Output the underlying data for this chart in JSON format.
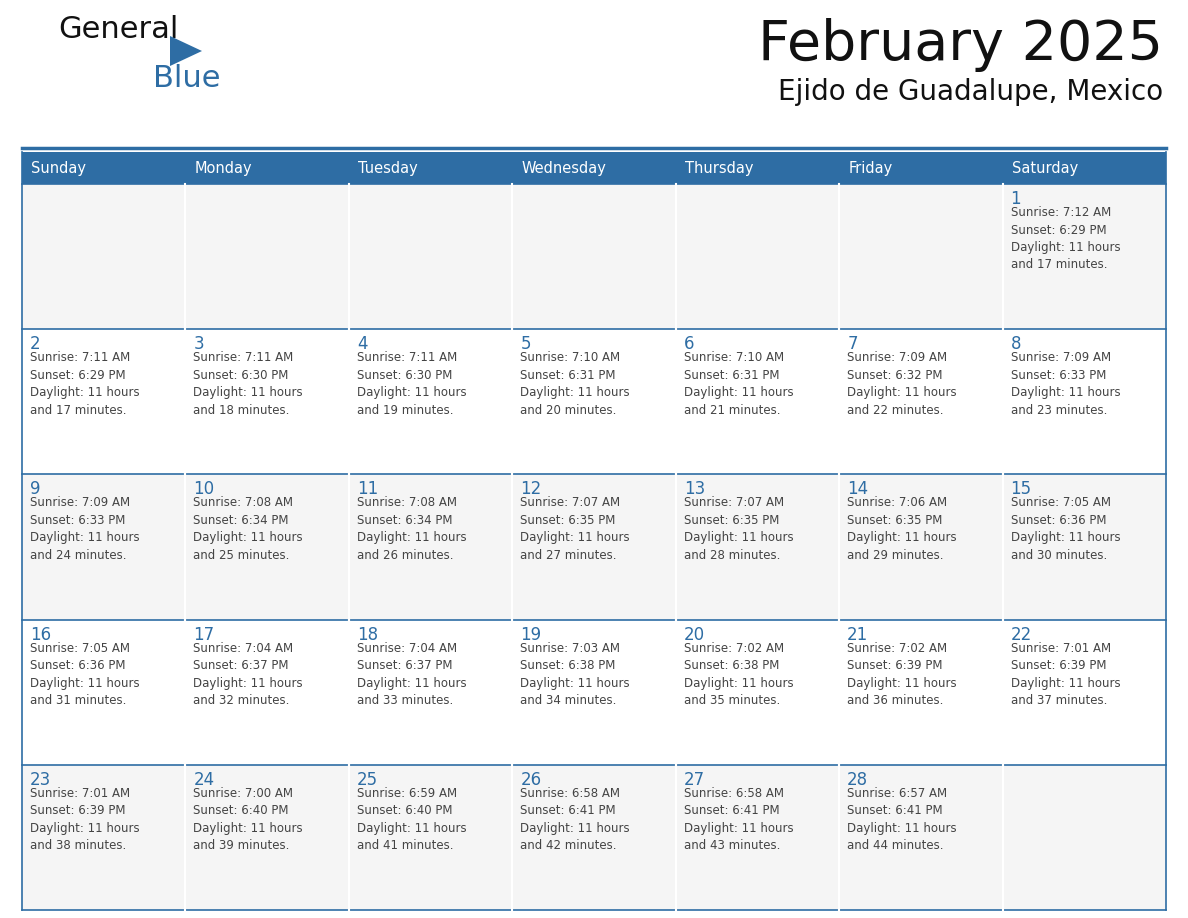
{
  "title": "February 2025",
  "subtitle": "Ejido de Guadalupe, Mexico",
  "header_bg": "#2E6DA4",
  "header_text_color": "#FFFFFF",
  "cell_bg": "#FFFFFF",
  "cell_bg_alt": "#F5F5F5",
  "day_number_color": "#2E6DA4",
  "cell_text_color": "#444444",
  "grid_line_color": "#2E6DA4",
  "days_of_week": [
    "Sunday",
    "Monday",
    "Tuesday",
    "Wednesday",
    "Thursday",
    "Friday",
    "Saturday"
  ],
  "weeks": [
    [
      {
        "day": "",
        "info": ""
      },
      {
        "day": "",
        "info": ""
      },
      {
        "day": "",
        "info": ""
      },
      {
        "day": "",
        "info": ""
      },
      {
        "day": "",
        "info": ""
      },
      {
        "day": "",
        "info": ""
      },
      {
        "day": "1",
        "info": "Sunrise: 7:12 AM\nSunset: 6:29 PM\nDaylight: 11 hours\nand 17 minutes."
      }
    ],
    [
      {
        "day": "2",
        "info": "Sunrise: 7:11 AM\nSunset: 6:29 PM\nDaylight: 11 hours\nand 17 minutes."
      },
      {
        "day": "3",
        "info": "Sunrise: 7:11 AM\nSunset: 6:30 PM\nDaylight: 11 hours\nand 18 minutes."
      },
      {
        "day": "4",
        "info": "Sunrise: 7:11 AM\nSunset: 6:30 PM\nDaylight: 11 hours\nand 19 minutes."
      },
      {
        "day": "5",
        "info": "Sunrise: 7:10 AM\nSunset: 6:31 PM\nDaylight: 11 hours\nand 20 minutes."
      },
      {
        "day": "6",
        "info": "Sunrise: 7:10 AM\nSunset: 6:31 PM\nDaylight: 11 hours\nand 21 minutes."
      },
      {
        "day": "7",
        "info": "Sunrise: 7:09 AM\nSunset: 6:32 PM\nDaylight: 11 hours\nand 22 minutes."
      },
      {
        "day": "8",
        "info": "Sunrise: 7:09 AM\nSunset: 6:33 PM\nDaylight: 11 hours\nand 23 minutes."
      }
    ],
    [
      {
        "day": "9",
        "info": "Sunrise: 7:09 AM\nSunset: 6:33 PM\nDaylight: 11 hours\nand 24 minutes."
      },
      {
        "day": "10",
        "info": "Sunrise: 7:08 AM\nSunset: 6:34 PM\nDaylight: 11 hours\nand 25 minutes."
      },
      {
        "day": "11",
        "info": "Sunrise: 7:08 AM\nSunset: 6:34 PM\nDaylight: 11 hours\nand 26 minutes."
      },
      {
        "day": "12",
        "info": "Sunrise: 7:07 AM\nSunset: 6:35 PM\nDaylight: 11 hours\nand 27 minutes."
      },
      {
        "day": "13",
        "info": "Sunrise: 7:07 AM\nSunset: 6:35 PM\nDaylight: 11 hours\nand 28 minutes."
      },
      {
        "day": "14",
        "info": "Sunrise: 7:06 AM\nSunset: 6:35 PM\nDaylight: 11 hours\nand 29 minutes."
      },
      {
        "day": "15",
        "info": "Sunrise: 7:05 AM\nSunset: 6:36 PM\nDaylight: 11 hours\nand 30 minutes."
      }
    ],
    [
      {
        "day": "16",
        "info": "Sunrise: 7:05 AM\nSunset: 6:36 PM\nDaylight: 11 hours\nand 31 minutes."
      },
      {
        "day": "17",
        "info": "Sunrise: 7:04 AM\nSunset: 6:37 PM\nDaylight: 11 hours\nand 32 minutes."
      },
      {
        "day": "18",
        "info": "Sunrise: 7:04 AM\nSunset: 6:37 PM\nDaylight: 11 hours\nand 33 minutes."
      },
      {
        "day": "19",
        "info": "Sunrise: 7:03 AM\nSunset: 6:38 PM\nDaylight: 11 hours\nand 34 minutes."
      },
      {
        "day": "20",
        "info": "Sunrise: 7:02 AM\nSunset: 6:38 PM\nDaylight: 11 hours\nand 35 minutes."
      },
      {
        "day": "21",
        "info": "Sunrise: 7:02 AM\nSunset: 6:39 PM\nDaylight: 11 hours\nand 36 minutes."
      },
      {
        "day": "22",
        "info": "Sunrise: 7:01 AM\nSunset: 6:39 PM\nDaylight: 11 hours\nand 37 minutes."
      }
    ],
    [
      {
        "day": "23",
        "info": "Sunrise: 7:01 AM\nSunset: 6:39 PM\nDaylight: 11 hours\nand 38 minutes."
      },
      {
        "day": "24",
        "info": "Sunrise: 7:00 AM\nSunset: 6:40 PM\nDaylight: 11 hours\nand 39 minutes."
      },
      {
        "day": "25",
        "info": "Sunrise: 6:59 AM\nSunset: 6:40 PM\nDaylight: 11 hours\nand 41 minutes."
      },
      {
        "day": "26",
        "info": "Sunrise: 6:58 AM\nSunset: 6:41 PM\nDaylight: 11 hours\nand 42 minutes."
      },
      {
        "day": "27",
        "info": "Sunrise: 6:58 AM\nSunset: 6:41 PM\nDaylight: 11 hours\nand 43 minutes."
      },
      {
        "day": "28",
        "info": "Sunrise: 6:57 AM\nSunset: 6:41 PM\nDaylight: 11 hours\nand 44 minutes."
      },
      {
        "day": "",
        "info": ""
      }
    ]
  ],
  "logo_text1": "General",
  "logo_text2": "Blue",
  "logo_color1": "#111111",
  "logo_color2": "#2E6DA4",
  "logo_triangle_color": "#2E6DA4",
  "title_fontsize": 40,
  "subtitle_fontsize": 20,
  "header_fontsize": 10.5,
  "day_num_fontsize": 12,
  "info_fontsize": 8.5
}
